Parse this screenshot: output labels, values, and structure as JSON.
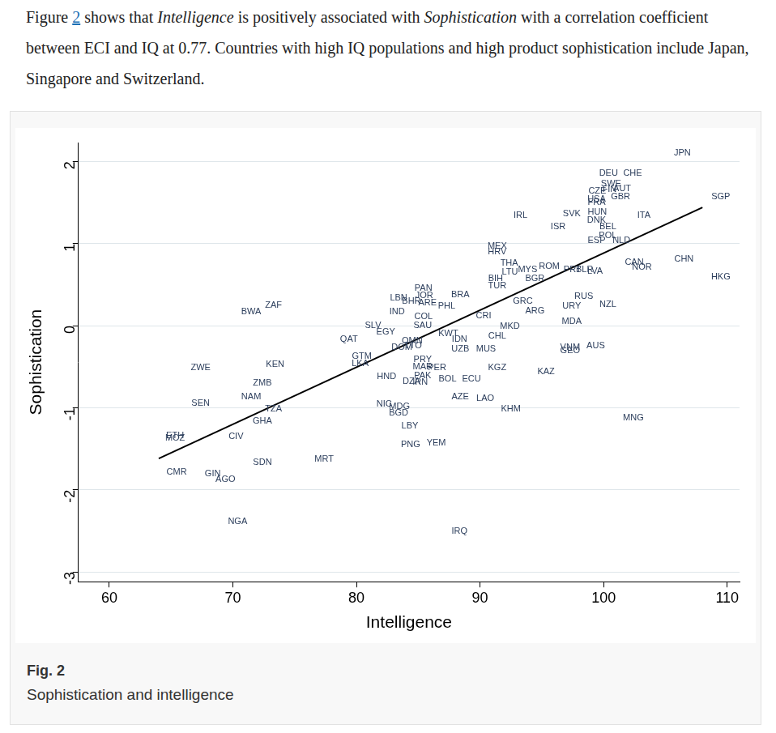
{
  "paragraph": [
    {
      "text": "Figure ",
      "style": "normal"
    },
    {
      "text": "2",
      "style": "link"
    },
    {
      "text": " shows that ",
      "style": "normal"
    },
    {
      "text": "Intelligence",
      "style": "italic"
    },
    {
      "text": " is positively associated with ",
      "style": "normal"
    },
    {
      "text": "Sophistication",
      "style": "italic"
    },
    {
      "text": " with a correlation coefficient between ECI and IQ at 0.77. Countries with high IQ populations and high product sophistication include Japan, Singapore and Switzerland.",
      "style": "normal"
    }
  ],
  "chart_data": {
    "type": "scatter",
    "xlabel": "Intelligence",
    "ylabel": "Sophistication",
    "xlim": [
      57.5,
      111
    ],
    "ylim": [
      -3.12,
      2.23
    ],
    "xticks": [
      60,
      70,
      80,
      90,
      100,
      110
    ],
    "yticks": [
      -3,
      -2,
      -1,
      0,
      1,
      2
    ],
    "grid": true,
    "series": [
      {
        "type": "scatter",
        "marker": "label",
        "color": "#2c3e5c",
        "point_labels": [
          "JPN",
          "DEU",
          "CHE",
          "CZE",
          "SWE",
          "FIN",
          "AUT",
          "GBR",
          "USA",
          "FRA",
          "HUN",
          "DNK",
          "ITA",
          "SVK",
          "ISR",
          "IRL",
          "BEL",
          "POL",
          "ESP",
          "NLD",
          "SGP",
          "CHN",
          "HKG",
          "CAN",
          "NOR",
          "MEX",
          "HRV",
          "THA",
          "LTU",
          "MYS",
          "ROM",
          "PRT",
          "BLR",
          "LVA",
          "BGR",
          "BIH",
          "TUR",
          "PAN",
          "LBN",
          "JOR",
          "BHR",
          "ARE",
          "BRA",
          "PHL",
          "IND",
          "RUS",
          "GRC",
          "ARG",
          "URY",
          "NZL",
          "ZAF",
          "BWA",
          "COL",
          "CRI",
          "SAU",
          "SLV",
          "EGY",
          "MDA",
          "MKD",
          "KWT",
          "CHL",
          "QAT",
          "IDN",
          "OMN",
          "DOM",
          "TTO",
          "UZB",
          "MUS",
          "AUS",
          "VNM",
          "GEO",
          "GTM",
          "LKA",
          "ZWE",
          "KEN",
          "PRY",
          "MAR",
          "PER",
          "KGZ",
          "KAZ",
          "HND",
          "PAK",
          "DZA",
          "IRN",
          "BOL",
          "ECU",
          "ZMB",
          "NAM",
          "AZE",
          "LAO",
          "SEN",
          "TZA",
          "KHM",
          "NIC",
          "MDG",
          "BGD",
          "GHA",
          "MNG",
          "LBY",
          "ETH",
          "MOZ",
          "CIV",
          "PNG",
          "YEM",
          "SDN",
          "MRT",
          "CMR",
          "GIN",
          "AGO",
          "NGA",
          "IRQ"
        ],
        "x": [
          106.37,
          100.4,
          102.35,
          99.49,
          100.6,
          100.47,
          101.5,
          101.37,
          99.43,
          99.43,
          99.49,
          99.43,
          103.26,
          97.42,
          96.32,
          93.27,
          100.34,
          100.34,
          99.43,
          101.44,
          109.48,
          106.5,
          109.48,
          102.48,
          103.1,
          91.39,
          91.39,
          92.36,
          92.42,
          93.85,
          95.6,
          97.48,
          98.46,
          99.3,
          94.44,
          91.26,
          91.39,
          85.42,
          83.41,
          85.49,
          84.45,
          85.75,
          88.4,
          87.3,
          83.28,
          98.39,
          93.46,
          94.44,
          97.42,
          100.34,
          73.29,
          71.48,
          85.42,
          90.29,
          85.36,
          81.34,
          82.37,
          97.42,
          92.42,
          87.43,
          91.39,
          79.39,
          88.34,
          84.51,
          83.67,
          84.58,
          88.4,
          90.48,
          99.36,
          97.29,
          97.29,
          80.43,
          80.3,
          67.39,
          73.42,
          85.36,
          85.36,
          86.52,
          91.39,
          95.34,
          82.44,
          85.36,
          84.45,
          85.16,
          87.37,
          89.31,
          72.39,
          71.48,
          88.4,
          90.42,
          67.39,
          73.29,
          92.49,
          82.24,
          83.48,
          83.41,
          72.39,
          102.41,
          84.32,
          65.32,
          65.32,
          70.25,
          84.38,
          86.46,
          72.39,
          77.38,
          65.45,
          68.37,
          69.4,
          70.38,
          88.34
        ],
        "values": [
          2.1,
          1.86,
          1.86,
          1.64,
          1.73,
          1.66,
          1.67,
          1.57,
          1.54,
          1.5,
          1.38,
          1.28,
          1.34,
          1.36,
          1.2,
          1.34,
          1.2,
          1.1,
          1.04,
          1.04,
          1.57,
          0.81,
          0.59,
          0.77,
          0.71,
          0.97,
          0.9,
          0.76,
          0.65,
          0.68,
          0.72,
          0.68,
          0.68,
          0.66,
          0.57,
          0.57,
          0.48,
          0.45,
          0.34,
          0.37,
          0.3,
          0.28,
          0.38,
          0.24,
          0.17,
          0.36,
          0.3,
          0.18,
          0.24,
          0.26,
          0.25,
          0.17,
          0.11,
          0.12,
          0.0,
          0.0,
          -0.08,
          0.05,
          -0.01,
          -0.1,
          -0.13,
          -0.17,
          -0.17,
          -0.19,
          -0.27,
          -0.25,
          -0.29,
          -0.29,
          -0.25,
          -0.27,
          -0.31,
          -0.37,
          -0.46,
          -0.51,
          -0.47,
          -0.41,
          -0.5,
          -0.51,
          -0.51,
          -0.56,
          -0.62,
          -0.61,
          -0.68,
          -0.69,
          -0.65,
          -0.65,
          -0.7,
          -0.87,
          -0.87,
          -0.89,
          -0.95,
          -1.02,
          -1.02,
          -0.96,
          -0.99,
          -1.07,
          -1.16,
          -1.12,
          -1.22,
          -1.34,
          -1.37,
          -1.35,
          -1.45,
          -1.43,
          -1.67,
          -1.63,
          -1.79,
          -1.81,
          -1.87,
          -2.39,
          -2.51
        ]
      },
      {
        "type": "line",
        "line_style": "solid",
        "color": "#000000",
        "x": [
          64,
          108
        ],
        "values": [
          -1.62,
          1.44
        ]
      }
    ]
  },
  "caption": {
    "label": "Fig. 2",
    "title": "Sophistication and intelligence"
  }
}
